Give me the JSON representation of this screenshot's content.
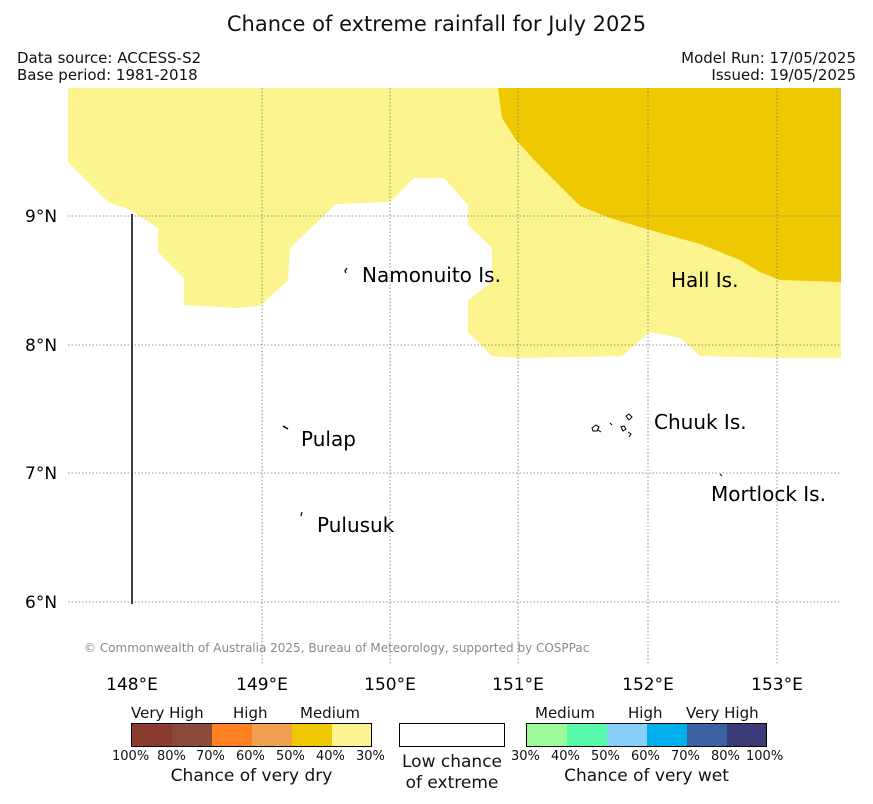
{
  "title": "Chance of extreme rainfall for July 2025",
  "meta": {
    "data_source": "Data source: ACCESS-S2",
    "base_period": "Base period: 1981-2018",
    "model_run": "Model Run: 17/05/2025",
    "issued": "Issued: 19/05/2025"
  },
  "map": {
    "lon_ticks": [
      "148°E",
      "149°E",
      "150°E",
      "151°E",
      "152°E",
      "153°E"
    ],
    "lat_ticks": [
      "9°N",
      "8°N",
      "7°N",
      "6°N"
    ],
    "places": {
      "namonuito": "Namonuito Is.",
      "hall": "Hall Is.",
      "pulap": "Pulap",
      "chuuk": "Chuuk Is.",
      "mortlock": "Mortlock Is.",
      "pulusuk": "Pulusuk"
    },
    "copyright": "© Commonwealth of Australia 2025, Bureau of Meteorology, supported by COSPPac",
    "colors": {
      "pale_yellow": "#fbf48f",
      "gold": "#eec800",
      "grid": "#777777"
    }
  },
  "legend": {
    "dry": {
      "levels": [
        "Very High",
        "High",
        "Medium"
      ],
      "percents": [
        "100%",
        "80%",
        "70%",
        "60%",
        "50%",
        "40%",
        "30%"
      ],
      "colors": [
        "#8b3a2f",
        "#8b4a3a",
        "#ff8020",
        "#f0a050",
        "#eec800",
        "#fbf48f"
      ],
      "caption": "Chance of very dry"
    },
    "low": {
      "caption_line1": "Low chance",
      "caption_line2": "of extreme"
    },
    "wet": {
      "levels": [
        "Medium",
        "High",
        "Very High"
      ],
      "percents": [
        "30%",
        "40%",
        "50%",
        "60%",
        "70%",
        "80%",
        "100%"
      ],
      "colors": [
        "#9ffb9a",
        "#55fba8",
        "#87cff8",
        "#00b0ed",
        "#3a62a0",
        "#3b3b78"
      ],
      "caption": "Chance of very wet"
    }
  }
}
